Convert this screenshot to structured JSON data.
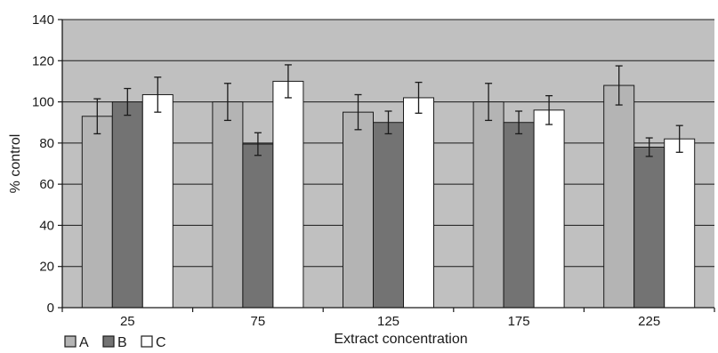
{
  "chart_data": {
    "type": "bar",
    "categories": [
      "25",
      "75",
      "125",
      "175",
      "225"
    ],
    "series": [
      {
        "name": "A",
        "color": "#b4b4b4",
        "values": [
          93,
          100,
          95,
          100,
          108
        ],
        "errors": [
          8.5,
          9,
          8.5,
          9,
          9.5
        ]
      },
      {
        "name": "B",
        "color": "#737373",
        "values": [
          100,
          79.5,
          90,
          90,
          78
        ],
        "errors": [
          6.5,
          5.5,
          5.5,
          5.5,
          4.5
        ]
      },
      {
        "name": "C",
        "color": "#ffffff",
        "values": [
          103.5,
          110,
          102,
          96,
          82
        ],
        "errors": [
          8.5,
          8,
          7.5,
          7,
          6.5
        ]
      }
    ],
    "ylim": [
      0,
      140
    ],
    "yticks": [
      0,
      20,
      40,
      60,
      80,
      100,
      120,
      140
    ],
    "ytick_labels": [
      "0",
      "20",
      "40",
      "60",
      "80",
      "100",
      "120",
      "140"
    ],
    "xlabel": "Extract concentration",
    "ylabel": "% control",
    "grid": true,
    "plot_background": "#c0c0c0",
    "legend_position": "bottom-left"
  }
}
